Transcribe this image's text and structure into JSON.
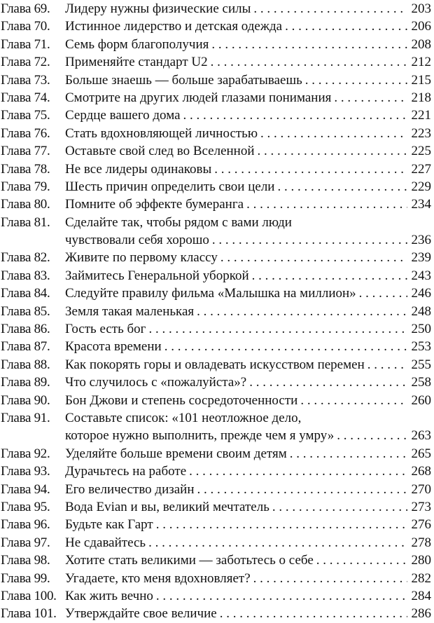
{
  "entries": [
    {
      "label": "Глава 69.",
      "title": "Лидеру нужны физические силы",
      "page": "203"
    },
    {
      "label": "Глава 70.",
      "title": "Истинное лидерство и детская одежда",
      "page": "206"
    },
    {
      "label": "Глава 71.",
      "title": "Семь форм благополучия",
      "page": "208"
    },
    {
      "label": "Глава 72.",
      "title": "Применяйте стандарт U2",
      "page": "212"
    },
    {
      "label": "Глава 73.",
      "title": "Больше знаешь — больше зарабатываешь",
      "page": "215"
    },
    {
      "label": "Глава 74.",
      "title": "Смотрите на других людей глазами понимания",
      "page": "218"
    },
    {
      "label": "Глава 75.",
      "title": "Сердце вашего дома",
      "page": "221"
    },
    {
      "label": "Глава 76.",
      "title": "Стать вдохновляющей личностью",
      "page": "223"
    },
    {
      "label": "Глава 77.",
      "title": "Оставьте свой след во Вселенной",
      "page": "225"
    },
    {
      "label": "Глава 78.",
      "title": "Не все лидеры одинаковы",
      "page": "227"
    },
    {
      "label": "Глава 79.",
      "title": "Шесть причин определить свои цели",
      "page": "229"
    },
    {
      "label": "Глава 80.",
      "title": "Помните об эффекте бумеранга",
      "page": "234"
    },
    {
      "label": "Глава 81.",
      "title": "Сделайте так, чтобы рядом с вами люди",
      "title_cont": "чувствовали себя хорошо",
      "page": "236"
    },
    {
      "label": "Глава 82.",
      "title": "Живите по первому классу",
      "page": "239"
    },
    {
      "label": "Глава 83.",
      "title": "Займитесь Генеральной уборкой",
      "page": "243"
    },
    {
      "label": "Глава 84.",
      "title": "Следуйте правилу фильма «Малышка на миллион»",
      "page": "246"
    },
    {
      "label": "Глава 85.",
      "title": "Земля такая маленькая",
      "page": "248"
    },
    {
      "label": "Глава 86.",
      "title": "Гость есть бог",
      "page": "250"
    },
    {
      "label": "Глава 87.",
      "title": "Красота времени",
      "page": "253"
    },
    {
      "label": "Глава 88.",
      "title": "Как покорять горы и овладевать искусством перемен",
      "page": "255"
    },
    {
      "label": "Глава 89.",
      "title": "Что случилось с «пожалуйста»?",
      "page": "258"
    },
    {
      "label": "Глава 90.",
      "title": "Бон Джови и степень сосредоточенности",
      "page": "260"
    },
    {
      "label": "Глава 91.",
      "title": "Составьте список: «101 неотложное дело,",
      "title_cont": "которое нужно выполнить, прежде чем я умру»",
      "page": "263"
    },
    {
      "label": "Глава 92.",
      "title": "Уделяйте больше времени своим детям",
      "page": "265"
    },
    {
      "label": "Глава 93.",
      "title": "Дурачьтесь на работе",
      "page": "268"
    },
    {
      "label": "Глава 94.",
      "title": "Его величество дизайн",
      "page": "270"
    },
    {
      "label": "Глава 95.",
      "title": "Вода Evian и вы, великий мечтатель",
      "page": "273"
    },
    {
      "label": "Глава 96.",
      "title": "Будьте как Гарт",
      "page": "276"
    },
    {
      "label": "Глава 97.",
      "title": "Не сдавайтесь",
      "page": "278"
    },
    {
      "label": "Глава 98.",
      "title": "Хотите стать великими — заботьтесь о себе",
      "page": "280"
    },
    {
      "label": "Глава 99.",
      "title": "Угадаете, кто меня вдохновляет?",
      "page": "282"
    },
    {
      "label": "Глава 100.",
      "title": "Как жить вечно",
      "page": "284"
    },
    {
      "label": "Глава 101.",
      "title": "Утверждайте свое величие",
      "page": "286"
    }
  ]
}
